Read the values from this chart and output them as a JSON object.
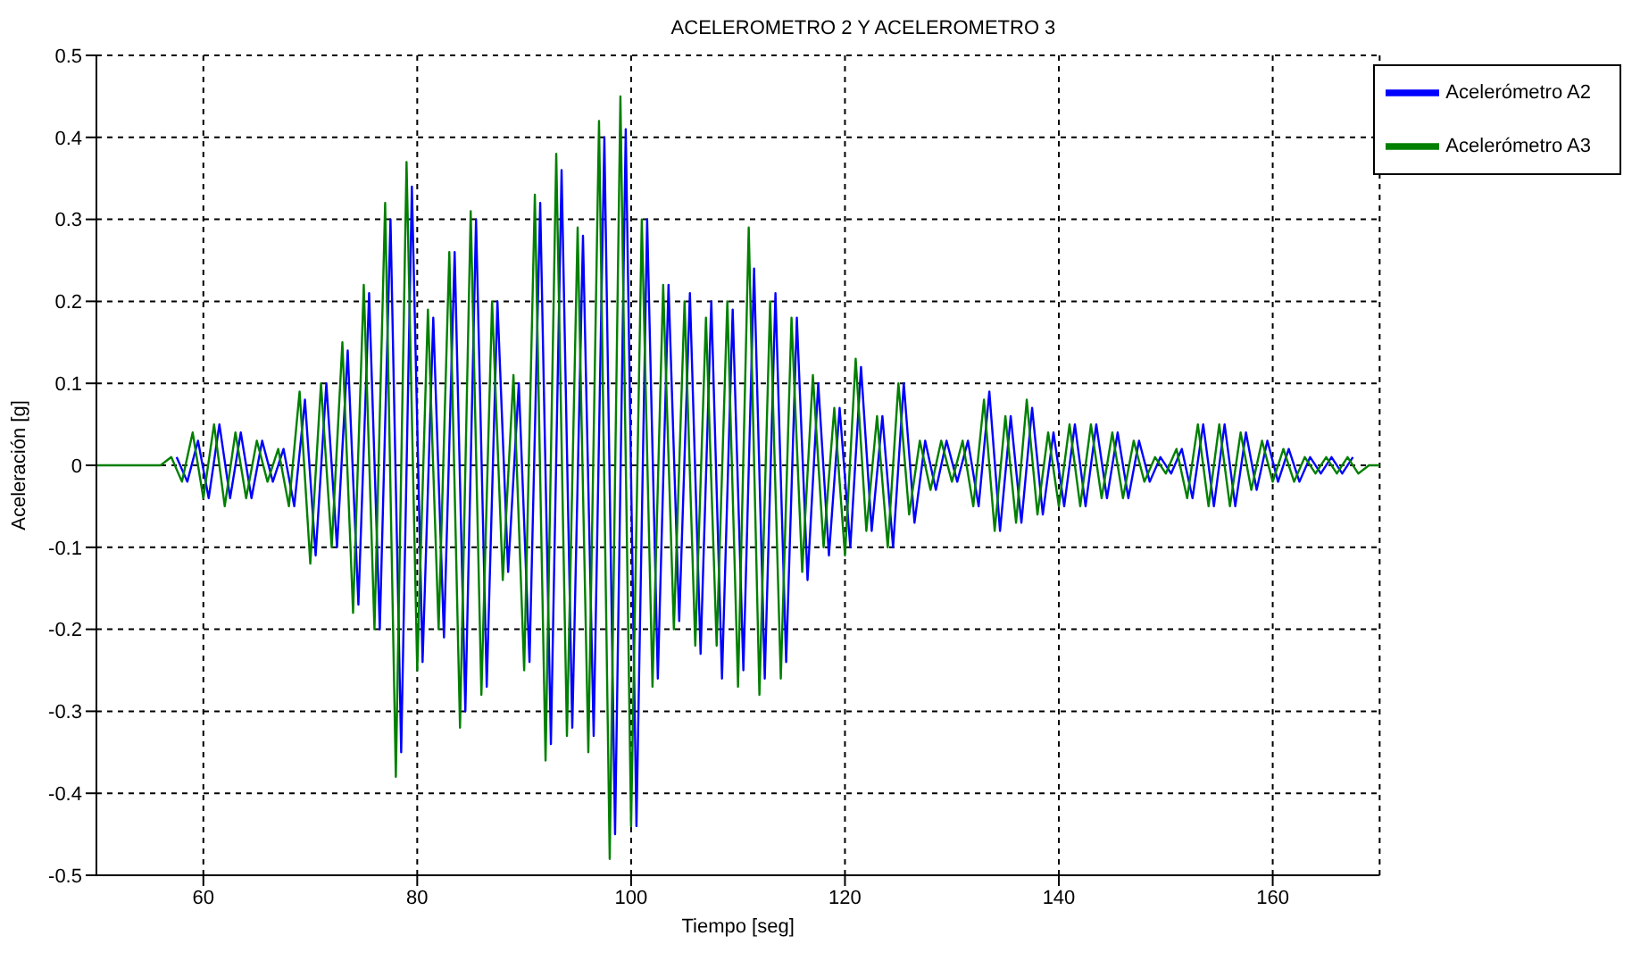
{
  "chart_data": {
    "type": "line",
    "title": "ACELEROMETRO 2 Y ACELEROMETRO 3",
    "xlabel": "Tiempo [seg]",
    "ylabel": "Aceleración [g]",
    "x": [
      50,
      51,
      52,
      53,
      54,
      55,
      56,
      57,
      58,
      59,
      60,
      61,
      62,
      63,
      64,
      65,
      66,
      67,
      68,
      69,
      70,
      71,
      72,
      73,
      74,
      75,
      76,
      77,
      78,
      79,
      80,
      81,
      82,
      83,
      84,
      85,
      86,
      87,
      88,
      89,
      90,
      91,
      92,
      93,
      94,
      95,
      96,
      97,
      98,
      99,
      100,
      101,
      102,
      103,
      104,
      105,
      106,
      107,
      108,
      109,
      110,
      111,
      112,
      113,
      114,
      115,
      116,
      117,
      118,
      119,
      120,
      121,
      122,
      123,
      124,
      125,
      126,
      127,
      128,
      129,
      130,
      131,
      132,
      133,
      134,
      135,
      136,
      137,
      138,
      139,
      140,
      141,
      142,
      143,
      144,
      145,
      146,
      147,
      148,
      149,
      150,
      151,
      152,
      153,
      154,
      155,
      156,
      157,
      158,
      159,
      160,
      161,
      162,
      163,
      164,
      165,
      166,
      167,
      168,
      169,
      170
    ],
    "series": [
      {
        "name": "Acelerómetro A2",
        "color": "#0000ff",
        "x": [
          57.5,
          58.5,
          59.5,
          60.5,
          61.5,
          62.5,
          63.5,
          64.5,
          65.5,
          66.5,
          67.5,
          68.5,
          69.5,
          70.5,
          71.5,
          72.5,
          73.5,
          74.5,
          75.5,
          76.5,
          77.5,
          78.5,
          79.5,
          80.5,
          81.5,
          82.5,
          83.5,
          84.5,
          85.5,
          86.5,
          87.5,
          88.5,
          89.5,
          90.5,
          91.5,
          92.5,
          93.5,
          94.5,
          95.5,
          96.5,
          97.5,
          98.5,
          99.5,
          100.5,
          101.5,
          102.5,
          103.5,
          104.5,
          105.5,
          106.5,
          107.5,
          108.5,
          109.5,
          110.5,
          111.5,
          112.5,
          113.5,
          114.5,
          115.5,
          116.5,
          117.5,
          118.5,
          119.5,
          120.5,
          121.5,
          122.5,
          123.5,
          124.5,
          125.5,
          126.5,
          127.5,
          128.5,
          129.5,
          130.5,
          131.5,
          132.5,
          133.5,
          134.5,
          135.5,
          136.5,
          137.5,
          138.5,
          139.5,
          140.5,
          141.5,
          142.5,
          143.5,
          144.5,
          145.5,
          146.5,
          147.5,
          148.5,
          149.5,
          150.5,
          151.5,
          152.5,
          153.5,
          154.5,
          155.5,
          156.5,
          157.5,
          158.5,
          159.5,
          160.5,
          161.5,
          162.5,
          163.5,
          164.5,
          165.5,
          166.5,
          167.5
        ],
        "values": [
          0.01,
          -0.02,
          0.03,
          -0.04,
          0.05,
          -0.04,
          0.04,
          -0.04,
          0.03,
          -0.02,
          0.02,
          -0.05,
          0.08,
          -0.11,
          0.1,
          -0.1,
          0.14,
          -0.17,
          0.21,
          -0.2,
          0.3,
          -0.35,
          0.34,
          -0.24,
          0.18,
          -0.21,
          0.26,
          -0.3,
          0.3,
          -0.27,
          0.2,
          -0.13,
          0.1,
          -0.24,
          0.32,
          -0.34,
          0.36,
          -0.32,
          0.28,
          -0.33,
          0.4,
          -0.45,
          0.41,
          -0.44,
          0.3,
          -0.26,
          0.22,
          -0.19,
          0.21,
          -0.23,
          0.2,
          -0.26,
          0.19,
          -0.25,
          0.24,
          -0.26,
          0.21,
          -0.24,
          0.18,
          -0.14,
          0.1,
          -0.11,
          0.07,
          -0.1,
          0.12,
          -0.08,
          0.06,
          -0.1,
          0.1,
          -0.07,
          0.03,
          -0.03,
          0.03,
          -0.02,
          0.03,
          -0.05,
          0.09,
          -0.08,
          0.06,
          -0.07,
          0.07,
          -0.06,
          0.04,
          -0.05,
          0.05,
          -0.05,
          0.05,
          -0.04,
          0.04,
          -0.04,
          0.03,
          -0.02,
          0.01,
          -0.01,
          0.02,
          -0.04,
          0.05,
          -0.05,
          0.05,
          -0.05,
          0.04,
          -0.03,
          0.03,
          -0.02,
          0.02,
          -0.02,
          0.01,
          -0.01,
          0.01,
          -0.01,
          0.01
        ]
      },
      {
        "name": "Acelerómetro A3",
        "color": "#008000",
        "values": [
          0,
          0,
          0,
          0,
          0,
          0,
          0,
          0.01,
          -0.02,
          0.04,
          -0.04,
          0.05,
          -0.05,
          0.04,
          -0.04,
          0.03,
          -0.02,
          0.02,
          -0.05,
          0.09,
          -0.12,
          0.1,
          -0.1,
          0.15,
          -0.18,
          0.22,
          -0.2,
          0.32,
          -0.38,
          0.37,
          -0.25,
          0.19,
          -0.2,
          0.26,
          -0.32,
          0.31,
          -0.28,
          0.2,
          -0.14,
          0.11,
          -0.25,
          0.33,
          -0.36,
          0.38,
          -0.33,
          0.29,
          -0.35,
          0.42,
          -0.48,
          0.45,
          -0.44,
          0.3,
          -0.27,
          0.22,
          -0.2,
          0.2,
          -0.22,
          0.18,
          -0.22,
          0.2,
          -0.27,
          0.29,
          -0.28,
          0.2,
          -0.26,
          0.18,
          -0.13,
          0.11,
          -0.1,
          0.07,
          -0.11,
          0.13,
          -0.08,
          0.06,
          -0.1,
          0.1,
          -0.06,
          0.03,
          -0.03,
          0.03,
          -0.02,
          0.03,
          -0.05,
          0.08,
          -0.08,
          0.06,
          -0.07,
          0.08,
          -0.06,
          0.04,
          -0.05,
          0.05,
          -0.05,
          0.05,
          -0.04,
          0.04,
          -0.04,
          0.03,
          -0.02,
          0.01,
          -0.01,
          0.02,
          -0.04,
          0.05,
          -0.05,
          0.05,
          -0.05,
          0.04,
          -0.03,
          0.03,
          -0.02,
          0.02,
          -0.02,
          0.01,
          -0.01,
          0.01,
          -0.01,
          0.01,
          -0.01,
          0,
          0
        ]
      }
    ],
    "xlim": [
      50,
      170
    ],
    "xticks": [
      60,
      80,
      100,
      120,
      140,
      160
    ],
    "ylim": [
      -0.5,
      0.5
    ],
    "yticks": [
      -0.5,
      -0.4,
      -0.3,
      -0.2,
      -0.1,
      0,
      0.1,
      0.2,
      0.3,
      0.4,
      0.5
    ],
    "grid": true,
    "legend": "top right",
    "marker": "none",
    "line_style": "solid"
  }
}
